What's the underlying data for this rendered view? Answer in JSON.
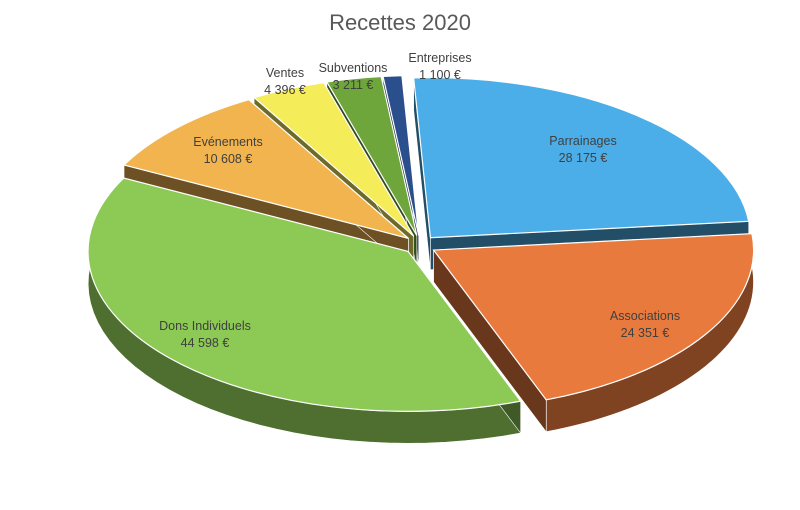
{
  "chart_data": {
    "type": "pie",
    "title": "Recettes 2020",
    "slices": [
      {
        "name": "Parrainages",
        "value": 28175,
        "label": "28 175 €",
        "color": "#4BAEE8"
      },
      {
        "name": "Associations",
        "value": 24351,
        "label": "24 351 €",
        "color": "#E87A3E"
      },
      {
        "name": "Dons Individuels",
        "value": 44598,
        "label": "44 598 €",
        "color": "#8DC955"
      },
      {
        "name": "Evénements",
        "value": 10608,
        "label": "10 608 €",
        "color": "#F2B44F"
      },
      {
        "name": "Ventes",
        "value": 4396,
        "label": "4 396 €",
        "color": "#F5EC5A"
      },
      {
        "name": "Subventions",
        "value": 3211,
        "label": "3 211 €",
        "color": "#6FA63C"
      },
      {
        "name": "Entreprises",
        "value": 1100,
        "label": "1 100 €",
        "color": "#2B4F8C"
      }
    ]
  }
}
